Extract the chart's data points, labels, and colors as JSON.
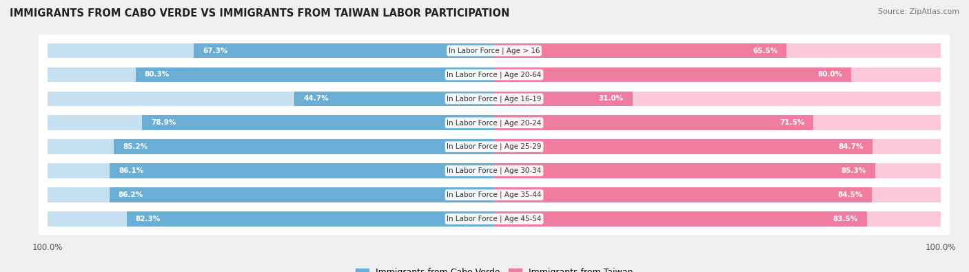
{
  "title": "IMMIGRANTS FROM CABO VERDE VS IMMIGRANTS FROM TAIWAN LABOR PARTICIPATION",
  "source": "Source: ZipAtlas.com",
  "categories": [
    "In Labor Force | Age > 16",
    "In Labor Force | Age 20-64",
    "In Labor Force | Age 16-19",
    "In Labor Force | Age 20-24",
    "In Labor Force | Age 25-29",
    "In Labor Force | Age 30-34",
    "In Labor Force | Age 35-44",
    "In Labor Force | Age 45-54"
  ],
  "cabo_verde_values": [
    67.3,
    80.3,
    44.7,
    78.9,
    85.2,
    86.1,
    86.2,
    82.3
  ],
  "taiwan_values": [
    65.5,
    80.0,
    31.0,
    71.5,
    84.7,
    85.3,
    84.5,
    83.5
  ],
  "cabo_verde_color": "#6AAED6",
  "taiwan_color": "#F07CA0",
  "cabo_verde_light_color": "#C5E0F0",
  "taiwan_light_color": "#FAC8DA",
  "bg_color": "#f0f0f0",
  "row_bg_color": "#ffffff",
  "max_value": 100.0,
  "bar_height": 0.62,
  "figsize": [
    14.06,
    3.95
  ],
  "dpi": 100
}
